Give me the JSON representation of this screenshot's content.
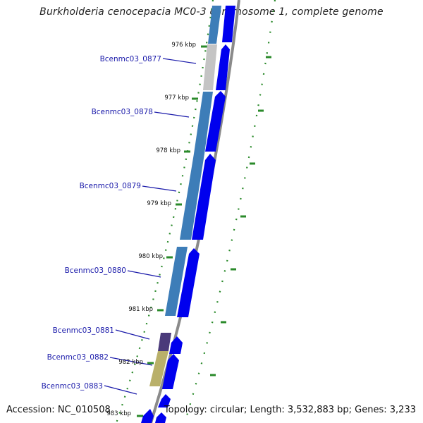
{
  "title": "Burkholderia cenocepacia MC0-3 chromosome 1, complete genome",
  "footer": {
    "accession": "Accession: NC_010508",
    "topology": "Topology: circular; Length: 3,532,883 bp; Genes: 3,233"
  },
  "kbp_labels": [
    "976 kbp",
    "977 kbp",
    "978 kbp",
    "979 kbp",
    "980 kbp",
    "981 kbp",
    "982 kbp",
    "983 kbp"
  ],
  "genes": [
    {
      "name": "Bcenmc03_0877"
    },
    {
      "name": "Bcenmc03_0878"
    },
    {
      "name": "Bcenmc03_0879"
    },
    {
      "name": "Bcenmc03_0880"
    },
    {
      "name": "Bcenmc03_0881"
    },
    {
      "name": "Bcenmc03_0882"
    },
    {
      "name": "Bcenmc03_0883"
    }
  ],
  "colors": {
    "cds_blue": "#0000ee",
    "cog_blue": "#3d7db8",
    "cog_grey": "#c4c4c4",
    "cog_purple": "#4a3a7a",
    "cog_olive": "#b9b06a",
    "tick_green": "#2a8a2a",
    "backbone": "#8a8a8a",
    "label_blue": "#1a1aaa"
  }
}
